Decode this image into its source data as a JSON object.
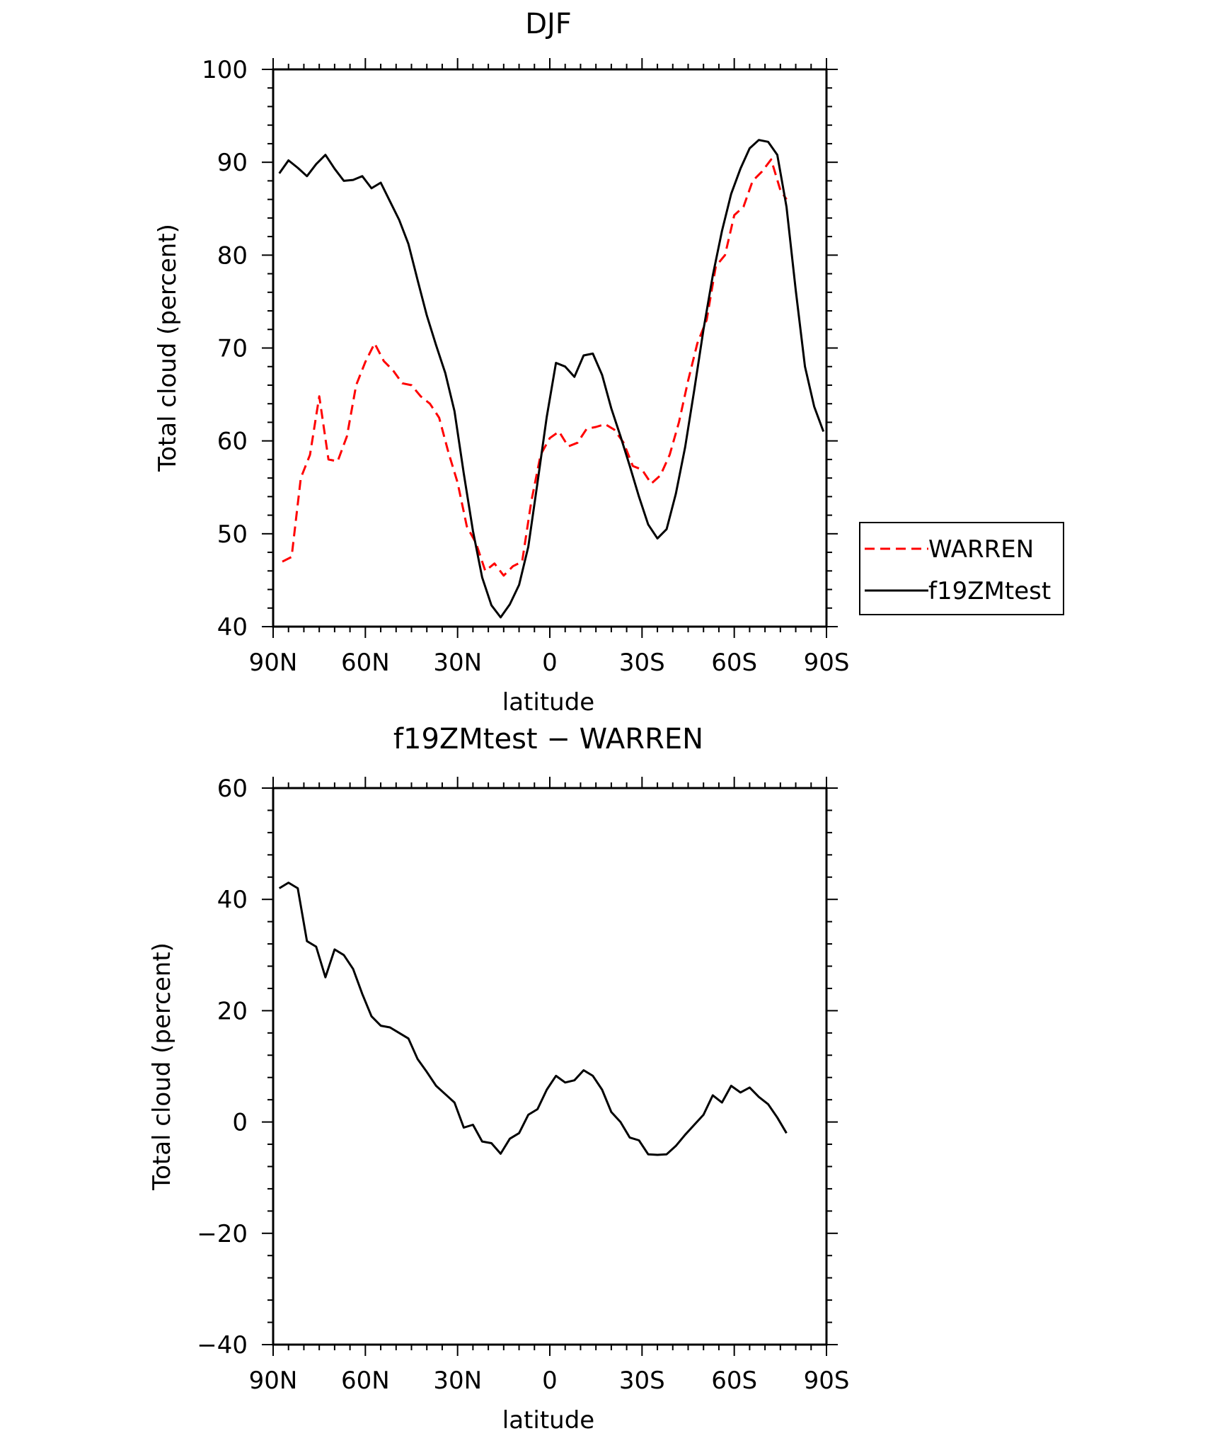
{
  "chart_data": [
    {
      "type": "line",
      "title": "DJF",
      "xlabel": "latitude",
      "ylabel": "Total cloud (percent)",
      "xlim": [
        90,
        -90
      ],
      "ylim": [
        40,
        100
      ],
      "x_ticks": [
        90,
        60,
        30,
        0,
        -30,
        -60,
        -90
      ],
      "x_tick_labels": [
        "90N",
        "60N",
        "30N",
        "0",
        "30S",
        "60S",
        "90S"
      ],
      "y_ticks": [
        40,
        50,
        60,
        70,
        80,
        90,
        100
      ],
      "y_tick_labels": [
        "40",
        "50",
        "60",
        "70",
        "80",
        "90",
        "100"
      ],
      "legend_position": "right-bottom",
      "series": [
        {
          "name": "WARREN",
          "color": "#ff0000",
          "style": "dashed",
          "x": [
            87,
            84,
            81,
            78,
            75,
            72,
            69,
            66,
            63,
            60,
            57,
            54,
            51,
            48,
            45,
            42,
            39,
            36,
            33,
            30,
            27,
            24,
            21,
            18,
            15,
            12,
            9,
            6,
            3,
            0,
            -3,
            -6,
            -9,
            -12,
            -15,
            -18,
            -21,
            -24,
            -27,
            -30,
            -33,
            -36,
            -39,
            -42,
            -45,
            -48,
            -51,
            -54,
            -57,
            -60,
            -63,
            -66,
            -69,
            -72,
            -75,
            -77
          ],
          "values": [
            47,
            47.5,
            56,
            58.5,
            64.8,
            58,
            57.8,
            60.5,
            66,
            68.5,
            70.5,
            68.6,
            67.6,
            66.2,
            66,
            64.8,
            64,
            62.5,
            58.8,
            55.5,
            50.8,
            49,
            46,
            46.8,
            45.5,
            46.5,
            47,
            53.5,
            58.5,
            60.3,
            61,
            59.4,
            59.8,
            61.3,
            61.5,
            61.8,
            61.2,
            59.8,
            57.3,
            56.9,
            55.4,
            56.3,
            58.5,
            62,
            66.5,
            70.5,
            73,
            78.8,
            80,
            84.3,
            85.2,
            88,
            89,
            90.3,
            87,
            86
          ]
        },
        {
          "name": "f19ZMtest",
          "color": "#000000",
          "style": "solid",
          "x": [
            88,
            85,
            82,
            79,
            76,
            73,
            70,
            67,
            64,
            61,
            58,
            55,
            52,
            49,
            46,
            43,
            40,
            37,
            34,
            31,
            28,
            25,
            22,
            19,
            16,
            13,
            10,
            7,
            4,
            1,
            -2,
            -5,
            -8,
            -11,
            -14,
            -17,
            -20,
            -23,
            -26,
            -29,
            -32,
            -35,
            -38,
            -41,
            -44,
            -47,
            -50,
            -53,
            -56,
            -59,
            -62,
            -65,
            -68,
            -71,
            -74,
            -77,
            -80,
            -83,
            -86,
            -89
          ],
          "values": [
            88.8,
            90.2,
            89.4,
            88.5,
            89.8,
            90.8,
            89.3,
            88,
            88.1,
            88.5,
            87.2,
            87.8,
            85.8,
            83.8,
            81.2,
            77.3,
            73.5,
            70.3,
            67.3,
            63.2,
            56.5,
            50.3,
            45.3,
            42.3,
            41,
            42.4,
            44.5,
            48.6,
            55.5,
            62.6,
            68.4,
            68,
            66.9,
            69.2,
            69.4,
            67.1,
            63.5,
            60.5,
            57.3,
            54,
            51,
            49.5,
            50.5,
            54.3,
            59.3,
            65.5,
            72,
            77.8,
            82.6,
            86.6,
            89.3,
            91.5,
            92.4,
            92.2,
            90.8,
            85.2,
            76.2,
            68,
            63.7,
            61
          ]
        }
      ]
    },
    {
      "type": "line",
      "title": "f19ZMtest − WARREN",
      "xlabel": "latitude",
      "ylabel": "Total cloud (percent)",
      "xlim": [
        90,
        -90
      ],
      "ylim": [
        -40,
        60
      ],
      "x_ticks": [
        90,
        60,
        30,
        0,
        -30,
        -60,
        -90
      ],
      "x_tick_labels": [
        "90N",
        "60N",
        "30N",
        "0",
        "30S",
        "60S",
        "90S"
      ],
      "y_ticks": [
        -40,
        -20,
        0,
        20,
        40,
        60
      ],
      "y_tick_labels": [
        "−40",
        "−20",
        "0",
        "20",
        "40",
        "60"
      ],
      "series": [
        {
          "color": "#000000",
          "style": "solid",
          "x": [
            88,
            85,
            82,
            79,
            76,
            73,
            70,
            67,
            64,
            61,
            58,
            55,
            52,
            49,
            46,
            43,
            40,
            37,
            34,
            31,
            28,
            25,
            22,
            19,
            16,
            13,
            10,
            7,
            4,
            1,
            -2,
            -5,
            -8,
            -11,
            -14,
            -17,
            -20,
            -23,
            -26,
            -29,
            -32,
            -35,
            -38,
            -41,
            -44,
            -47,
            -50,
            -53,
            -56,
            -59,
            -62,
            -65,
            -68,
            -71,
            -74,
            -77
          ],
          "values": [
            42,
            43,
            42,
            32.5,
            31.5,
            26,
            31,
            30,
            27.5,
            23,
            19,
            17.3,
            17,
            16,
            15,
            11.3,
            9,
            6.5,
            5,
            3.5,
            -1,
            -0.5,
            -3.5,
            -3.8,
            -5.7,
            -3,
            -2,
            1.3,
            2.3,
            5.8,
            8.3,
            7.1,
            7.5,
            9.3,
            8.3,
            5.8,
            1.8,
            0,
            -2.8,
            -3.3,
            -5.8,
            -5.9,
            -5.8,
            -4.3,
            -2.3,
            -0.5,
            1.3,
            4.8,
            3.5,
            6.5,
            5.3,
            6.2,
            4.5,
            3.2,
            0.8,
            -2
          ]
        }
      ]
    }
  ]
}
